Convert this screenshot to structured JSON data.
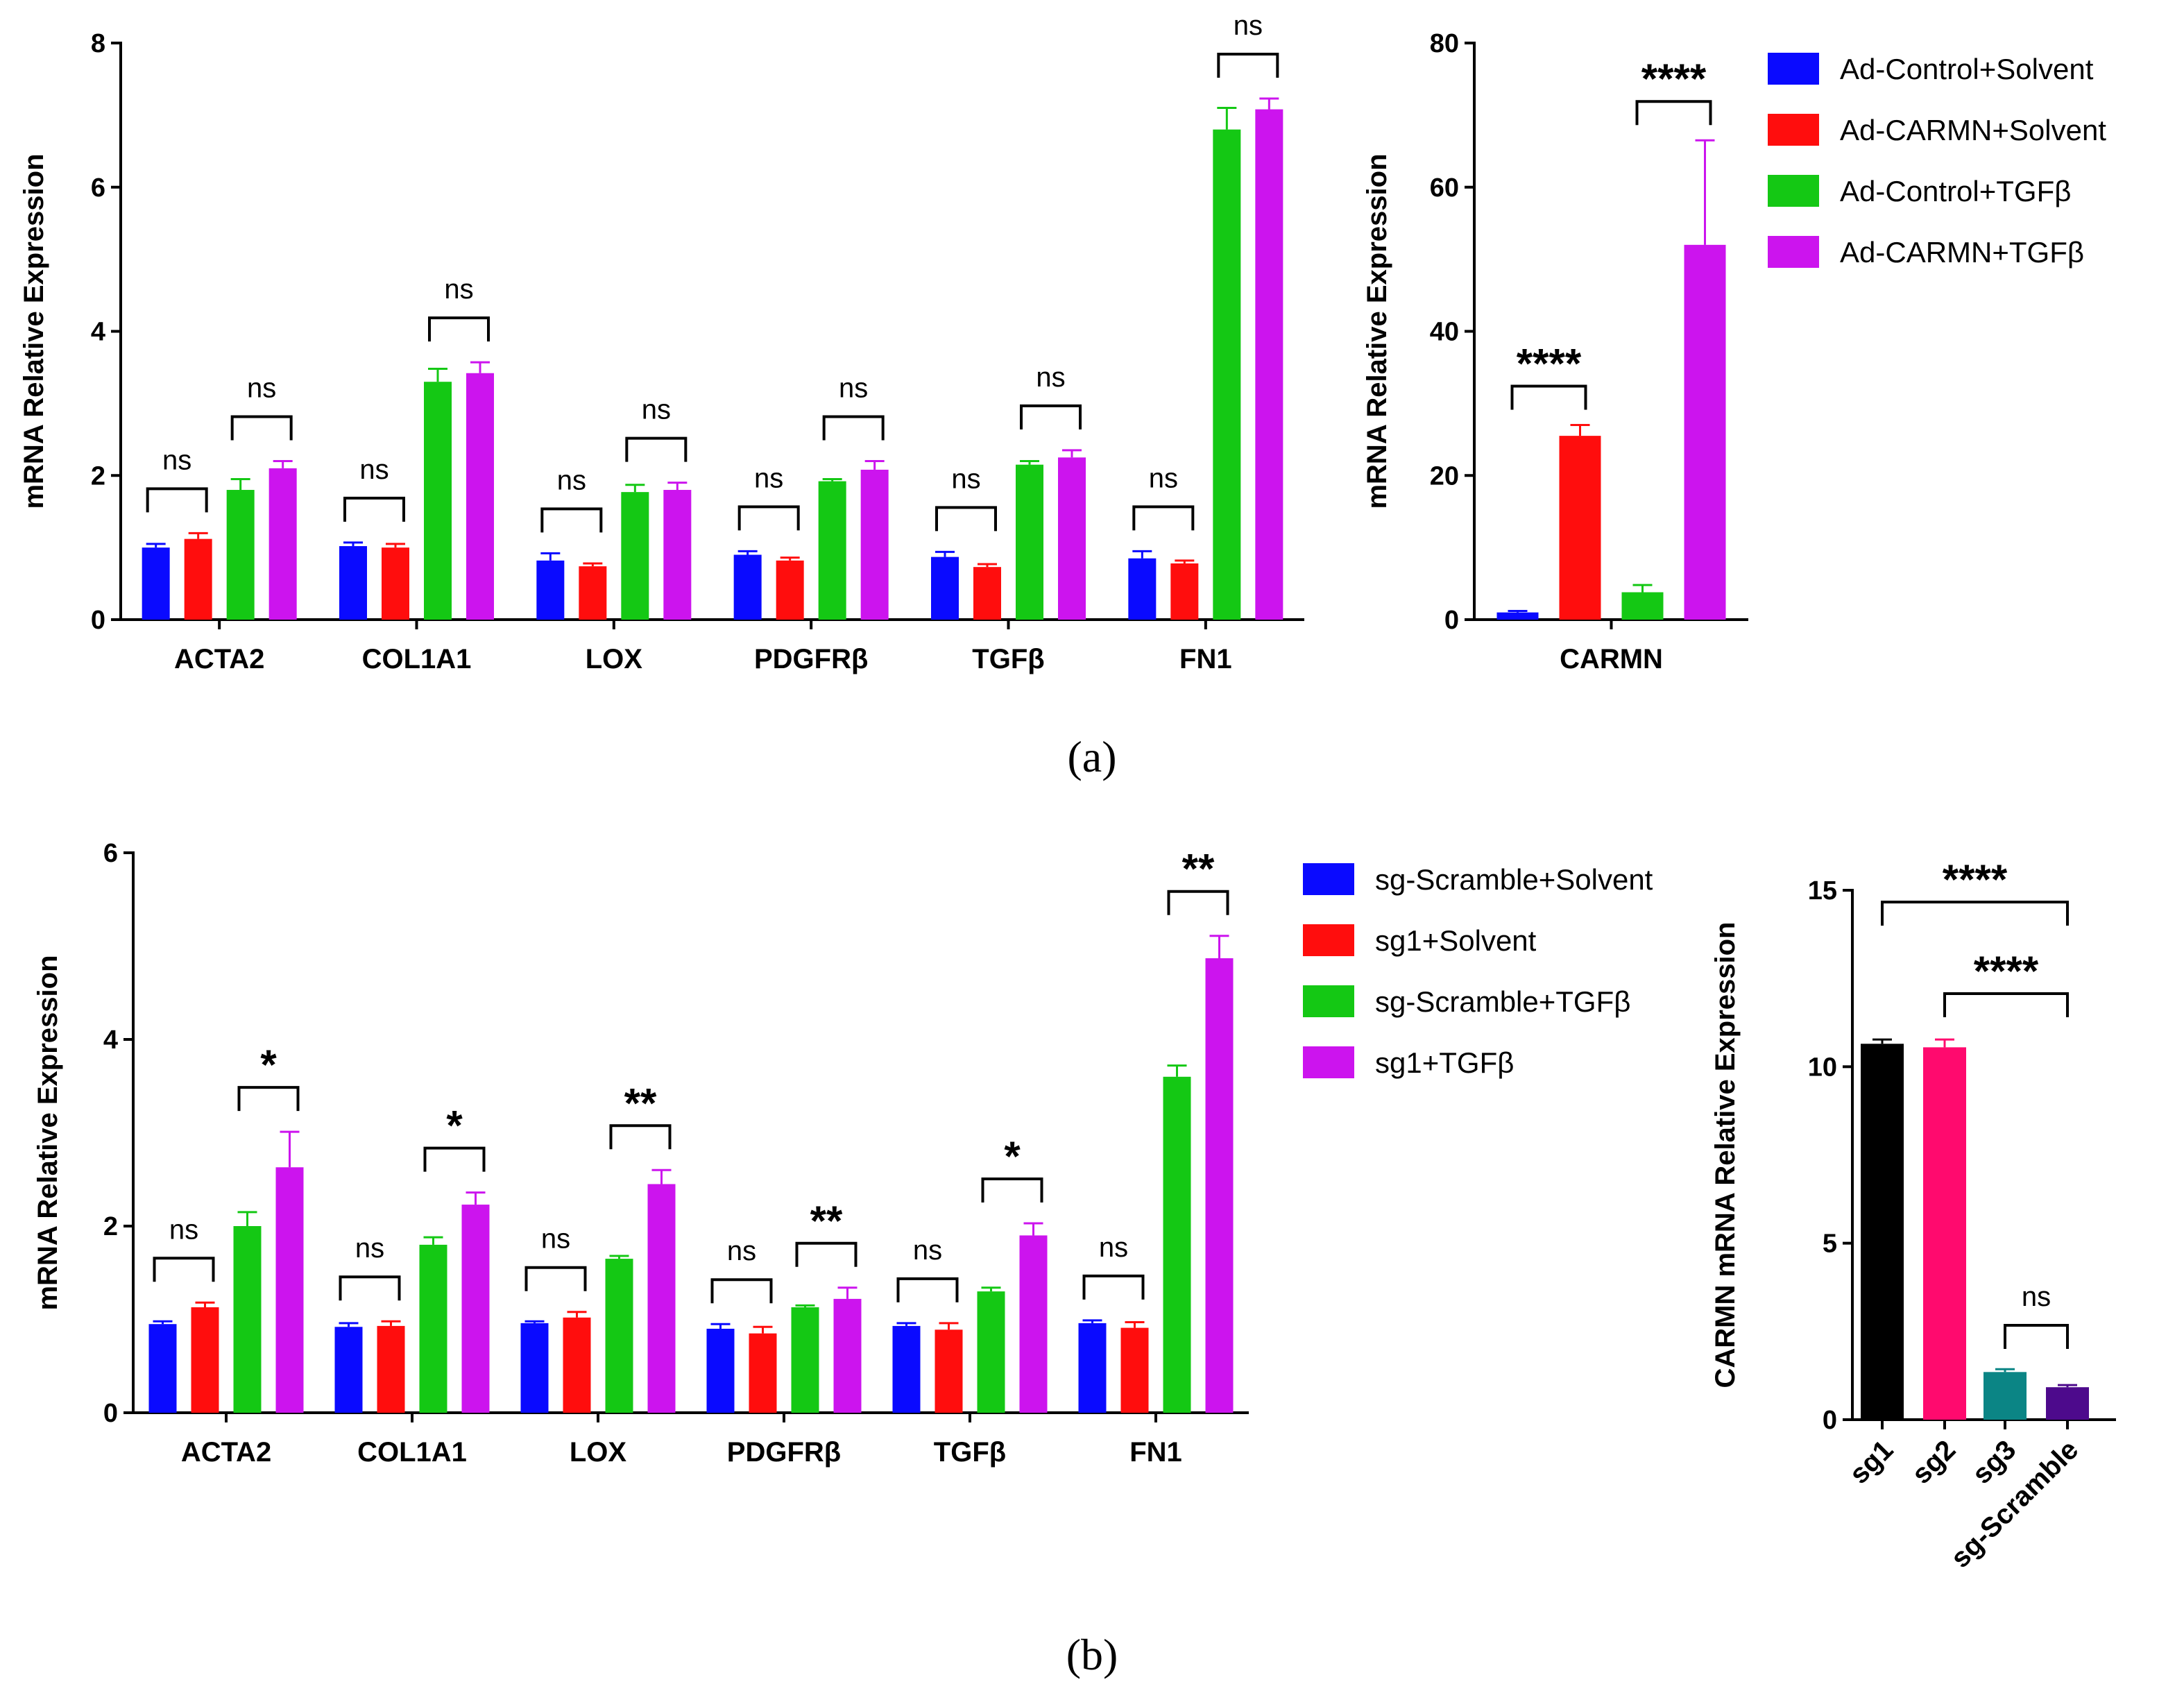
{
  "colors": {
    "blue": "#0a0aff",
    "red": "#ff0d0d",
    "green": "#14c814",
    "magenta": "#cc14ee",
    "black": "#000000",
    "pink": "#ff0a6e",
    "teal": "#0b8585",
    "purple": "#4d0a8c"
  },
  "panel_labels": {
    "a": "(a)",
    "b": "(b)"
  },
  "chart_data": [
    {
      "id": "a-genes",
      "type": "bar",
      "categories": [
        "ACTA2",
        "COL1A1",
        "LOX",
        "PDGFRβ",
        "TGFβ",
        "FN1"
      ],
      "ylabel": "mRNA Relative Expression",
      "ylim": [
        0,
        8
      ],
      "yticks": [
        "0",
        "2",
        "4",
        "6",
        "8"
      ],
      "series": [
        {
          "name": "Ad-Control+Solvent",
          "color": "#0a0aff",
          "values": [
            1.0,
            1.02,
            0.82,
            0.9,
            0.87,
            0.85
          ],
          "errors": [
            0.05,
            0.05,
            0.1,
            0.05,
            0.07,
            0.1
          ]
        },
        {
          "name": "Ad-CARMN+Solvent",
          "color": "#ff0d0d",
          "values": [
            1.12,
            1.0,
            0.74,
            0.82,
            0.73,
            0.78
          ],
          "errors": [
            0.08,
            0.05,
            0.04,
            0.04,
            0.04,
            0.04
          ]
        },
        {
          "name": "Ad-Control+TGFβ",
          "color": "#14c814",
          "values": [
            1.8,
            3.3,
            1.77,
            1.92,
            2.15,
            6.8
          ],
          "errors": [
            0.15,
            0.18,
            0.1,
            0.03,
            0.05,
            0.3
          ]
        },
        {
          "name": "Ad-CARMN+TGFβ",
          "color": "#cc14ee",
          "values": [
            2.1,
            3.42,
            1.8,
            2.08,
            2.25,
            7.08
          ],
          "errors": [
            0.1,
            0.15,
            0.1,
            0.12,
            0.1,
            0.15
          ]
        }
      ],
      "significance": [
        {
          "category": 0,
          "from": 0,
          "to": 1,
          "label": "ns"
        },
        {
          "category": 0,
          "from": 2,
          "to": 3,
          "label": "ns"
        },
        {
          "category": 1,
          "from": 0,
          "to": 1,
          "label": "ns"
        },
        {
          "category": 1,
          "from": 2,
          "to": 3,
          "label": "ns"
        },
        {
          "category": 2,
          "from": 0,
          "to": 1,
          "label": "ns"
        },
        {
          "category": 2,
          "from": 2,
          "to": 3,
          "label": "ns"
        },
        {
          "category": 3,
          "from": 0,
          "to": 1,
          "label": "ns"
        },
        {
          "category": 3,
          "from": 2,
          "to": 3,
          "label": "ns"
        },
        {
          "category": 4,
          "from": 0,
          "to": 1,
          "label": "ns"
        },
        {
          "category": 4,
          "from": 2,
          "to": 3,
          "label": "ns"
        },
        {
          "category": 5,
          "from": 0,
          "to": 1,
          "label": "ns"
        },
        {
          "category": 5,
          "from": 2,
          "to": 3,
          "label": "ns"
        }
      ]
    },
    {
      "id": "a-carmn",
      "type": "bar",
      "categories": [
        "CARMN"
      ],
      "ylabel": "mRNA Relative Expression",
      "ylim": [
        0,
        80
      ],
      "yticks": [
        "0",
        "20",
        "40",
        "60",
        "80"
      ],
      "series": [
        {
          "name": "Ad-Control+Solvent",
          "color": "#0a0aff",
          "values": [
            1.0
          ],
          "errors": [
            0.2
          ]
        },
        {
          "name": "Ad-CARMN+Solvent",
          "color": "#ff0d0d",
          "values": [
            25.5
          ],
          "errors": [
            1.5
          ]
        },
        {
          "name": "Ad-Control+TGFβ",
          "color": "#14c814",
          "values": [
            3.8
          ],
          "errors": [
            1.0
          ]
        },
        {
          "name": "Ad-CARMN+TGFβ",
          "color": "#cc14ee",
          "values": [
            52.0
          ],
          "errors": [
            14.5
          ]
        }
      ],
      "legend": [
        "Ad-Control+Solvent",
        "Ad-CARMN+Solvent",
        "Ad-Control+TGFβ",
        "Ad-CARMN+TGFβ"
      ],
      "significance": [
        {
          "category": 0,
          "from": 0,
          "to": 1,
          "label": "****"
        },
        {
          "category": 0,
          "from": 2,
          "to": 3,
          "label": "****"
        }
      ]
    },
    {
      "id": "b-genes",
      "type": "bar",
      "categories": [
        "ACTA2",
        "COL1A1",
        "LOX",
        "PDGFRβ",
        "TGFβ",
        "FN1"
      ],
      "ylabel": "mRNA Relative Expression",
      "ylim": [
        0,
        6
      ],
      "yticks": [
        "0",
        "2",
        "4",
        "6"
      ],
      "series": [
        {
          "name": "sg-Scramble+Solvent",
          "color": "#0a0aff",
          "values": [
            0.95,
            0.92,
            0.96,
            0.9,
            0.93,
            0.96
          ],
          "errors": [
            0.03,
            0.04,
            0.02,
            0.05,
            0.03,
            0.03
          ]
        },
        {
          "name": "sg1+Solvent",
          "color": "#ff0d0d",
          "values": [
            1.13,
            0.93,
            1.02,
            0.85,
            0.89,
            0.91
          ],
          "errors": [
            0.05,
            0.05,
            0.06,
            0.07,
            0.07,
            0.06
          ]
        },
        {
          "name": "sg-Scramble+TGFβ",
          "color": "#14c814",
          "values": [
            2.0,
            1.8,
            1.65,
            1.13,
            1.3,
            3.6
          ],
          "errors": [
            0.15,
            0.08,
            0.03,
            0.02,
            0.04,
            0.12
          ]
        },
        {
          "name": "sg1+TGFβ",
          "color": "#cc14ee",
          "values": [
            2.63,
            2.23,
            2.45,
            1.22,
            1.9,
            4.87
          ],
          "errors": [
            0.38,
            0.13,
            0.15,
            0.12,
            0.13,
            0.24
          ]
        }
      ],
      "legend": [
        "sg-Scramble+Solvent",
        "sg1+Solvent",
        "sg-Scramble+TGFβ",
        "sg1+TGFβ"
      ],
      "significance": [
        {
          "category": 0,
          "from": 0,
          "to": 1,
          "label": "ns"
        },
        {
          "category": 0,
          "from": 2,
          "to": 3,
          "label": "*"
        },
        {
          "category": 1,
          "from": 0,
          "to": 1,
          "label": "ns"
        },
        {
          "category": 1,
          "from": 2,
          "to": 3,
          "label": "*"
        },
        {
          "category": 2,
          "from": 0,
          "to": 1,
          "label": "ns"
        },
        {
          "category": 2,
          "from": 2,
          "to": 3,
          "label": "**"
        },
        {
          "category": 3,
          "from": 0,
          "to": 1,
          "label": "ns"
        },
        {
          "category": 3,
          "from": 2,
          "to": 3,
          "label": "**"
        },
        {
          "category": 4,
          "from": 0,
          "to": 1,
          "label": "ns"
        },
        {
          "category": 4,
          "from": 2,
          "to": 3,
          "label": "*"
        },
        {
          "category": 5,
          "from": 0,
          "to": 1,
          "label": "ns"
        },
        {
          "category": 5,
          "from": 2,
          "to": 3,
          "label": "**"
        }
      ]
    },
    {
      "id": "b-carmn",
      "type": "bar",
      "categories": [
        "sg1",
        "sg2",
        "sg3",
        "sg-Scramble"
      ],
      "ylabel": "CARMN mRNA  Relative Expression",
      "ylim": [
        0,
        15
      ],
      "yticks": [
        "0",
        "5",
        "10",
        "15"
      ],
      "values": [
        10.65,
        10.55,
        1.35,
        0.92
      ],
      "errors": [
        0.12,
        0.22,
        0.08,
        0.06
      ],
      "colors": [
        "#000000",
        "#ff0a6e",
        "#0b8585",
        "#4d0a8c"
      ],
      "significance": [
        {
          "from": 0,
          "to": 3,
          "label": "****"
        },
        {
          "from": 1,
          "to": 3,
          "label": "****"
        },
        {
          "from": 2,
          "to": 3,
          "label": "ns"
        }
      ]
    }
  ]
}
